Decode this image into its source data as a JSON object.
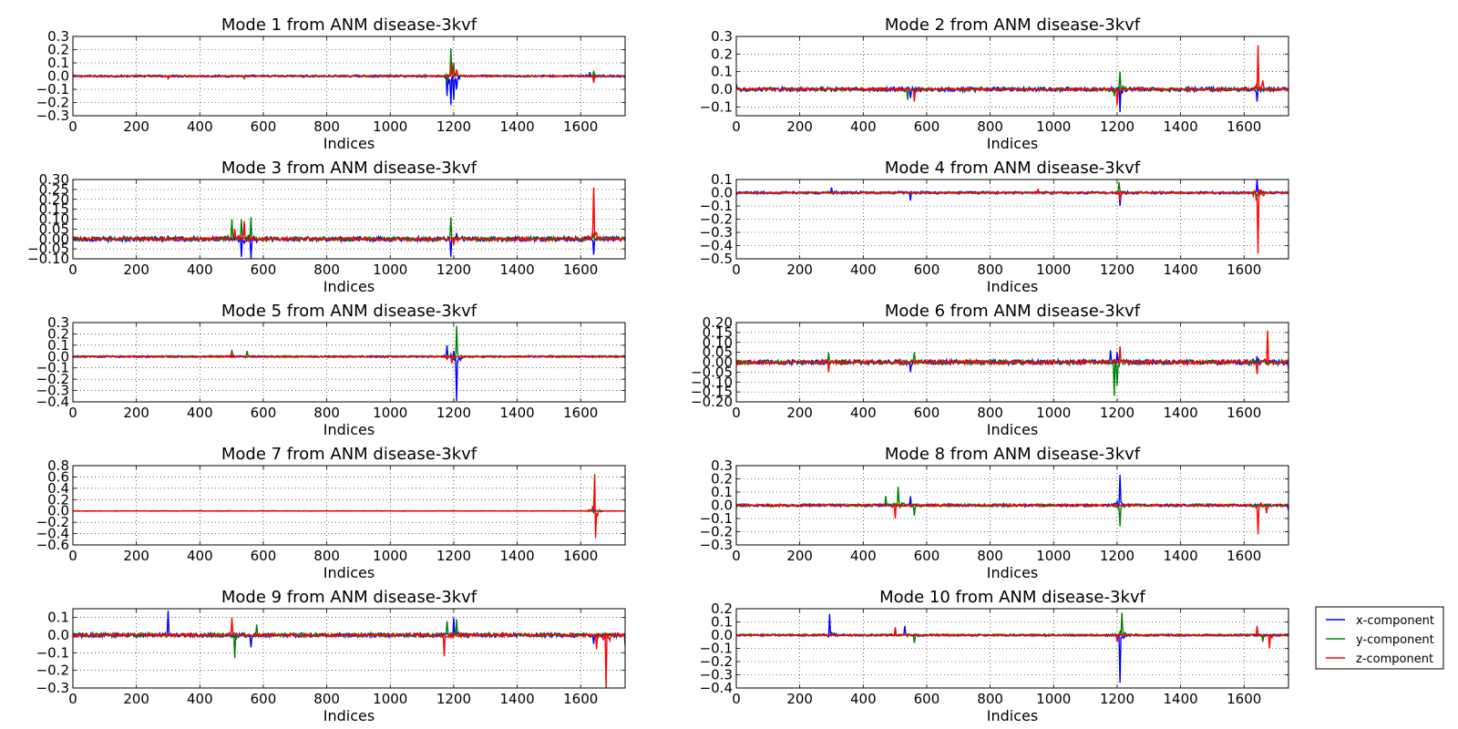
{
  "chart_data": {
    "type": "line",
    "x_range": [
      0,
      1740
    ],
    "x_ticks": [
      0,
      200,
      400,
      600,
      800,
      1000,
      1200,
      1400,
      1600
    ],
    "xlabel": "Indices",
    "grid": true,
    "legend": {
      "placement": "right of bottom-right panel",
      "entries": [
        "x-component",
        "y-component",
        "z-component"
      ]
    },
    "series_colors": {
      "x-component": "#0000ff",
      "y-component": "#008000",
      "z-component": "#ff0000"
    },
    "panels": [
      {
        "title": "Mode 1 from ANM disease-3kvf",
        "ylim": [
          -0.3,
          0.3
        ],
        "yticks": [
          "0.3",
          "0.2",
          "0.1",
          "0.0",
          "−0.1",
          "−0.2",
          "−0.3"
        ],
        "yvals": [
          0.3,
          0.2,
          0.1,
          0.0,
          -0.1,
          -0.2,
          -0.3
        ],
        "series": [
          {
            "name": "x-component",
            "spikes": [
              [
                1180,
                -0.15
              ],
              [
                1190,
                -0.22
              ],
              [
                1200,
                -0.18
              ],
              [
                1210,
                -0.1
              ],
              [
                1630,
                0.03
              ]
            ],
            "noise": 0.008
          },
          {
            "name": "y-component",
            "spikes": [
              [
                1190,
                0.21
              ],
              [
                1200,
                0.1
              ],
              [
                1180,
                -0.05
              ],
              [
                1640,
                0.04
              ],
              [
                540,
                -0.02
              ]
            ],
            "noise": 0.006
          },
          {
            "name": "z-component",
            "spikes": [
              [
                1195,
                0.1
              ],
              [
                1210,
                0.05
              ],
              [
                1640,
                -0.05
              ],
              [
                300,
                -0.02
              ]
            ],
            "noise": 0.005
          }
        ]
      },
      {
        "title": "Mode 2 from ANM disease-3kvf",
        "ylim": [
          -0.15,
          0.3
        ],
        "yticks": [
          "0.3",
          "0.2",
          "0.1",
          "0.0",
          "−0.1"
        ],
        "yvals": [
          0.3,
          0.2,
          0.1,
          0.0,
          -0.1
        ],
        "series": [
          {
            "name": "x-component",
            "spikes": [
              [
                1210,
                -0.13
              ],
              [
                1640,
                -0.07
              ],
              [
                550,
                -0.05
              ],
              [
                0,
                0.03
              ]
            ],
            "noise": 0.012
          },
          {
            "name": "y-component",
            "spikes": [
              [
                1210,
                0.1
              ],
              [
                540,
                -0.06
              ],
              [
                1190,
                -0.04
              ]
            ],
            "noise": 0.008
          },
          {
            "name": "z-component",
            "spikes": [
              [
                1645,
                0.25
              ],
              [
                1660,
                0.05
              ],
              [
                560,
                -0.07
              ],
              [
                1200,
                -0.09
              ]
            ],
            "noise": 0.008
          }
        ]
      },
      {
        "title": "Mode 3 from ANM disease-3kvf",
        "ylim": [
          -0.1,
          0.3
        ],
        "yticks": [
          "0.30",
          "0.25",
          "0.20",
          "0.15",
          "0.10",
          "0.05",
          "0.00",
          "−0.05",
          "−0.10"
        ],
        "yvals": [
          0.3,
          0.25,
          0.2,
          0.15,
          0.1,
          0.05,
          0.0,
          -0.05,
          -0.1
        ],
        "series": [
          {
            "name": "x-component",
            "spikes": [
              [
                530,
                -0.09
              ],
              [
                560,
                -0.1
              ],
              [
                1190,
                -0.09
              ],
              [
                1640,
                -0.08
              ],
              [
                1210,
                0.03
              ]
            ],
            "noise": 0.012
          },
          {
            "name": "y-component",
            "spikes": [
              [
                500,
                0.1
              ],
              [
                530,
                0.1
              ],
              [
                560,
                0.11
              ],
              [
                1190,
                0.11
              ],
              [
                1640,
                0.03
              ]
            ],
            "noise": 0.01
          },
          {
            "name": "z-component",
            "spikes": [
              [
                1640,
                0.26
              ],
              [
                540,
                0.09
              ],
              [
                510,
                0.05
              ],
              [
                1200,
                -0.03
              ]
            ],
            "noise": 0.008
          }
        ]
      },
      {
        "title": "Mode 4 from ANM disease-3kvf",
        "ylim": [
          -0.5,
          0.1
        ],
        "yticks": [
          "0.1",
          "0.0",
          "−0.1",
          "−0.2",
          "−0.3",
          "−0.4",
          "−0.5"
        ],
        "yvals": [
          0.1,
          0.0,
          -0.1,
          -0.2,
          -0.3,
          -0.4,
          -0.5
        ],
        "series": [
          {
            "name": "x-component",
            "spikes": [
              [
                1640,
                0.1
              ],
              [
                1210,
                -0.1
              ],
              [
                550,
                -0.06
              ],
              [
                300,
                0.04
              ]
            ],
            "noise": 0.01
          },
          {
            "name": "y-component",
            "spikes": [
              [
                1205,
                0.08
              ],
              [
                1640,
                -0.03
              ]
            ],
            "noise": 0.006
          },
          {
            "name": "z-component",
            "spikes": [
              [
                1645,
                -0.46
              ],
              [
                1210,
                -0.06
              ],
              [
                950,
                0.03
              ]
            ],
            "noise": 0.006
          }
        ]
      },
      {
        "title": "Mode 5 from ANM disease-3kvf",
        "ylim": [
          -0.4,
          0.3
        ],
        "yticks": [
          "0.3",
          "0.2",
          "0.1",
          "0.0",
          "−0.1",
          "−0.2",
          "−0.3",
          "−0.4"
        ],
        "yvals": [
          0.3,
          0.2,
          0.1,
          0.0,
          -0.1,
          -0.2,
          -0.3,
          -0.4
        ],
        "series": [
          {
            "name": "x-component",
            "spikes": [
              [
                1210,
                -0.39
              ],
              [
                1180,
                0.1
              ],
              [
                1200,
                0.05
              ]
            ],
            "noise": 0.008
          },
          {
            "name": "y-component",
            "spikes": [
              [
                1210,
                0.27
              ],
              [
                500,
                0.06
              ],
              [
                550,
                0.05
              ]
            ],
            "noise": 0.008
          },
          {
            "name": "z-component",
            "spikes": [
              [
                1195,
                -0.06
              ],
              [
                1180,
                -0.03
              ],
              [
                500,
                0.04
              ]
            ],
            "noise": 0.006
          }
        ]
      },
      {
        "title": "Mode 6 from ANM disease-3kvf",
        "ylim": [
          -0.2,
          0.2
        ],
        "yticks": [
          "0.20",
          "0.15",
          "0.10",
          "0.05",
          "0.00",
          "−0.05",
          "−0.10",
          "−0.15",
          "−0.20"
        ],
        "yvals": [
          0.2,
          0.15,
          0.1,
          0.05,
          0.0,
          -0.05,
          -0.1,
          -0.15,
          -0.2
        ],
        "series": [
          {
            "name": "x-component",
            "spikes": [
              [
                1180,
                0.06
              ],
              [
                1200,
                0.05
              ],
              [
                550,
                -0.05
              ],
              [
                1740,
                -0.04
              ],
              [
                1640,
                0.03
              ]
            ],
            "noise": 0.012
          },
          {
            "name": "y-component",
            "spikes": [
              [
                1190,
                -0.17
              ],
              [
                1200,
                -0.12
              ],
              [
                290,
                0.05
              ],
              [
                560,
                0.05
              ]
            ],
            "noise": 0.01
          },
          {
            "name": "z-component",
            "spikes": [
              [
                1675,
                0.16
              ],
              [
                1640,
                -0.06
              ],
              [
                1210,
                0.08
              ],
              [
                290,
                -0.05
              ]
            ],
            "noise": 0.01
          }
        ]
      },
      {
        "title": "Mode 7 from ANM disease-3kvf",
        "ylim": [
          -0.6,
          0.8
        ],
        "yticks": [
          "0.8",
          "0.6",
          "0.4",
          "0.2",
          "0.0",
          "−0.2",
          "−0.4",
          "−0.6"
        ],
        "yvals": [
          0.8,
          0.6,
          0.4,
          0.2,
          0.0,
          -0.2,
          -0.4,
          -0.6
        ],
        "series": [
          {
            "name": "x-component",
            "spikes": [
              [
                1640,
                0.03
              ]
            ],
            "noise": 0.003
          },
          {
            "name": "y-component",
            "spikes": [
              [
                1640,
                -0.03
              ]
            ],
            "noise": 0.003
          },
          {
            "name": "z-component",
            "spikes": [
              [
                1643,
                0.65
              ],
              [
                1647,
                -0.48
              ]
            ],
            "noise": 0.003
          }
        ]
      },
      {
        "title": "Mode 8 from ANM disease-3kvf",
        "ylim": [
          -0.3,
          0.3
        ],
        "yticks": [
          "0.3",
          "0.2",
          "0.1",
          "0.0",
          "−0.1",
          "−0.2",
          "−0.3"
        ],
        "yvals": [
          0.3,
          0.2,
          0.1,
          0.0,
          -0.1,
          -0.2,
          -0.3
        ],
        "series": [
          {
            "name": "x-component",
            "spikes": [
              [
                1210,
                0.23
              ],
              [
                550,
                0.07
              ],
              [
                1740,
                -0.04
              ]
            ],
            "noise": 0.01
          },
          {
            "name": "y-component",
            "spikes": [
              [
                510,
                0.14
              ],
              [
                1210,
                -0.16
              ],
              [
                470,
                0.07
              ],
              [
                560,
                -0.08
              ]
            ],
            "noise": 0.01
          },
          {
            "name": "z-component",
            "spikes": [
              [
                1645,
                -0.22
              ],
              [
                500,
                -0.1
              ],
              [
                1670,
                -0.06
              ]
            ],
            "noise": 0.008
          }
        ]
      },
      {
        "title": "Mode 9 from ANM disease-3kvf",
        "ylim": [
          -0.3,
          0.15
        ],
        "yticks": [
          "0.1",
          "0.0",
          "−0.1",
          "−0.2",
          "−0.3"
        ],
        "yvals": [
          0.1,
          0.0,
          -0.1,
          -0.2,
          -0.3
        ],
        "series": [
          {
            "name": "x-component",
            "spikes": [
              [
                300,
                0.14
              ],
              [
                1200,
                0.1
              ],
              [
                560,
                -0.07
              ],
              [
                1640,
                -0.05
              ]
            ],
            "noise": 0.012
          },
          {
            "name": "y-component",
            "spikes": [
              [
                510,
                -0.13
              ],
              [
                1180,
                0.08
              ],
              [
                1210,
                0.09
              ],
              [
                580,
                0.06
              ],
              [
                1740,
                -0.06
              ]
            ],
            "noise": 0.01
          },
          {
            "name": "z-component",
            "spikes": [
              [
                1680,
                -0.3
              ],
              [
                500,
                0.1
              ],
              [
                1170,
                -0.12
              ],
              [
                1650,
                -0.08
              ]
            ],
            "noise": 0.01
          }
        ]
      },
      {
        "title": "Mode 10 from ANM disease-3kvf",
        "ylim": [
          -0.4,
          0.2
        ],
        "yticks": [
          "0.2",
          "0.1",
          "0.0",
          "−0.1",
          "−0.2",
          "−0.3",
          "−0.4"
        ],
        "yvals": [
          0.2,
          0.1,
          0.0,
          -0.1,
          -0.2,
          -0.3,
          -0.4
        ],
        "series": [
          {
            "name": "x-component",
            "spikes": [
              [
                1210,
                -0.36
              ],
              [
                295,
                0.16
              ],
              [
                530,
                0.07
              ]
            ],
            "noise": 0.008
          },
          {
            "name": "y-component",
            "spikes": [
              [
                1215,
                0.17
              ],
              [
                1660,
                -0.05
              ],
              [
                560,
                -0.06
              ]
            ],
            "noise": 0.008
          },
          {
            "name": "z-component",
            "spikes": [
              [
                1640,
                0.07
              ],
              [
                1680,
                -0.1
              ],
              [
                500,
                0.06
              ],
              [
                1200,
                -0.05
              ]
            ],
            "noise": 0.006
          }
        ]
      }
    ]
  }
}
